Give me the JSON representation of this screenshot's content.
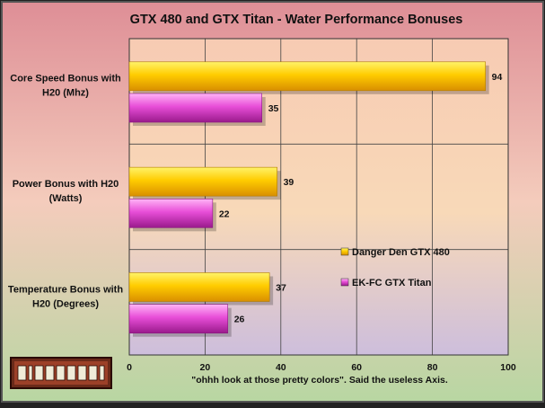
{
  "chart_data": {
    "type": "bar",
    "orientation": "horizontal",
    "title": "GTX 480 and GTX Titan - Water Performance Bonuses",
    "xlabel": "\"ohhh look at those pretty colors\".  Said the useless Axis.",
    "ylabel": "",
    "xlim": [
      0,
      100
    ],
    "x_ticks": [
      "0",
      "20",
      "40",
      "60",
      "80",
      "100"
    ],
    "grid": true,
    "legend_position": "right",
    "categories": [
      [
        "Core Speed Bonus with",
        "H20 (Mhz)"
      ],
      [
        "Power Bonus with H20",
        "(Watts)"
      ],
      [
        "Temperature Bonus with",
        "H20 (Degrees)"
      ]
    ],
    "series": [
      {
        "name": "Danger Den GTX 480",
        "values": [
          94,
          39,
          37
        ],
        "color": "#ffc400"
      },
      {
        "name": "EK-FC GTX Titan",
        "values": [
          35,
          22,
          26
        ],
        "color": "#e94ad8"
      }
    ],
    "value_labels": [
      [
        "94",
        "39",
        "37"
      ],
      [
        "35",
        "22",
        "26"
      ]
    ],
    "background_colors": [
      "#e0949a",
      "#f4ccbc",
      "#bfd6a6"
    ],
    "plot_colors": [
      "#f6cfb8",
      "#f8d8b6",
      "#d4c4d8"
    ],
    "logo_text": "Madonion"
  }
}
